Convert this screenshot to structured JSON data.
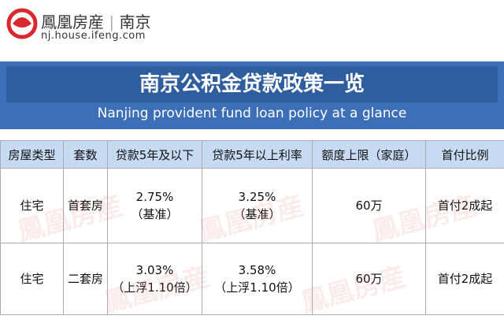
{
  "header": {
    "logo_text": "鳳凰房産",
    "city": "南京",
    "url": "nj.house.ifeng.com"
  },
  "banner": {
    "title": "南京公积金贷款政策一览",
    "subtitle": "Nanjing provident fund loan policy at a glance"
  },
  "watermark": "鳳凰房産",
  "table": {
    "columns": [
      "房屋类型",
      "套数",
      "贷款5年及以下",
      "贷款5年以上利率",
      "额度上限（家庭）",
      "首付比例"
    ],
    "rows": [
      [
        [
          "住宅"
        ],
        [
          "首套房"
        ],
        [
          "2.75%",
          "（基准）"
        ],
        [
          "3.25%",
          "（基准）"
        ],
        [
          "60万"
        ],
        [
          "首付2成起"
        ]
      ],
      [
        [
          "住宅"
        ],
        [
          "二套房"
        ],
        [
          "3.03%",
          "（上浮1.10倍）"
        ],
        [
          "3.58%",
          "（上浮1.10倍）"
        ],
        [
          "60万"
        ],
        [
          "首付2成起"
        ]
      ]
    ]
  }
}
